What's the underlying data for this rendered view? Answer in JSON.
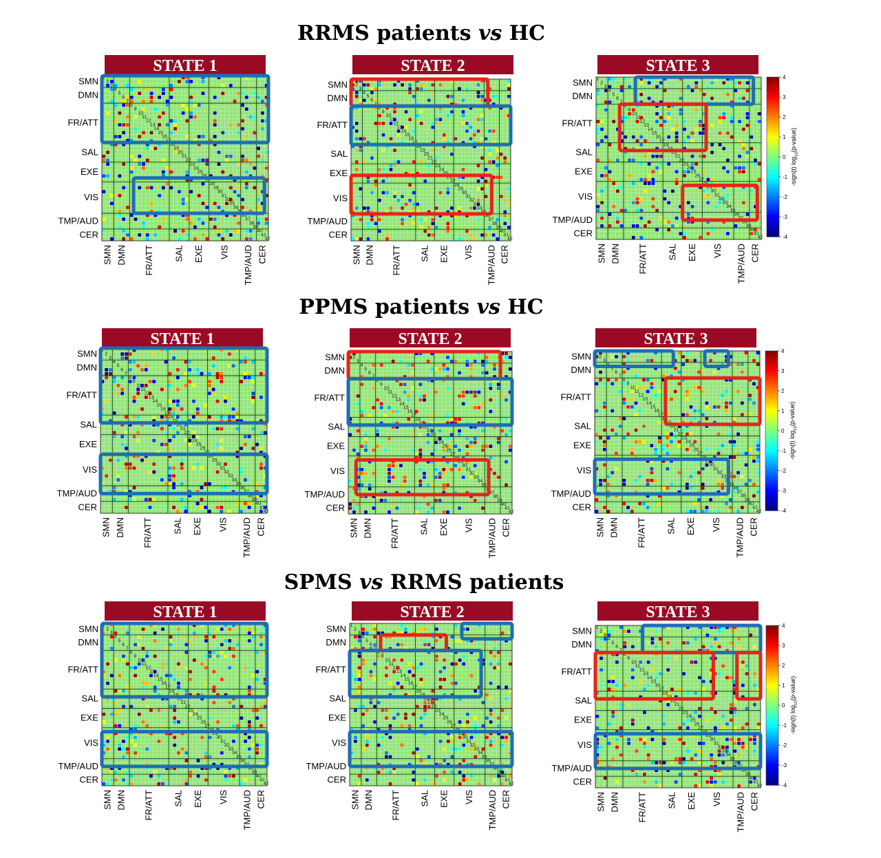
{
  "rows": [
    {
      "title_parts": [
        "RRMS patients ",
        "vs",
        " HC"
      ],
      "panels": [
        {
          "label": "STATE 1",
          "boxes": [
            {
              "color": "blue",
              "r0": 0,
              "r1": 17,
              "c0": 0,
              "c1": 42
            },
            {
              "color": "blue",
              "r0": 26,
              "r1": 35,
              "c0": 8,
              "c1": 41
            }
          ]
        },
        {
          "label": "STATE 2",
          "boxes": [
            {
              "color": "red",
              "r0": 0,
              "r1": 7,
              "c0": 0,
              "c1": 36
            },
            {
              "color": "blue",
              "r0": 7,
              "r1": 17,
              "c0": 0,
              "c1": 42
            },
            {
              "color": "red",
              "r0": 25,
              "r1": 35,
              "c0": 0,
              "c1": 37
            }
          ]
        },
        {
          "label": "STATE 3",
          "boxes": [
            {
              "color": "blue",
              "r0": 0,
              "r1": 7,
              "c0": 10,
              "c1": 40
            },
            {
              "color": "red",
              "r0": 7,
              "r1": 19,
              "c0": 6,
              "c1": 28
            },
            {
              "color": "red",
              "r0": 28,
              "r1": 37,
              "c0": 22,
              "c1": 41
            }
          ]
        }
      ]
    },
    {
      "title_parts": [
        "PPMS patients ",
        "vs",
        " HC"
      ],
      "panels": [
        {
          "label": "STATE 1",
          "boxes": [
            {
              "color": "blue",
              "r0": 0,
              "r1": 19,
              "c0": 0,
              "c1": 42
            },
            {
              "color": "blue",
              "r0": 27,
              "r1": 37,
              "c0": 0,
              "c1": 42
            }
          ]
        },
        {
          "label": "STATE 2",
          "boxes": [
            {
              "color": "red",
              "r0": 0,
              "r1": 7,
              "c0": 0,
              "c1": 39
            },
            {
              "color": "blue",
              "r0": 7,
              "r1": 19,
              "c0": 0,
              "c1": 42
            },
            {
              "color": "red",
              "r0": 28,
              "r1": 37,
              "c0": 2,
              "c1": 36
            }
          ]
        },
        {
          "label": "STATE 3",
          "boxes": [
            {
              "color": "blue",
              "r0": 0,
              "r1": 4,
              "c0": 0,
              "c1": 20
            },
            {
              "color": "blue",
              "r0": 0,
              "r1": 4,
              "c0": 28,
              "c1": 34
            },
            {
              "color": "red",
              "r0": 7,
              "r1": 19,
              "c0": 18,
              "c1": 42
            },
            {
              "color": "blue",
              "r0": 28,
              "r1": 37,
              "c0": 0,
              "c1": 34
            }
          ]
        }
      ]
    },
    {
      "title_parts": [
        "SPMS ",
        "vs",
        " RRMS patients"
      ],
      "panels": [
        {
          "label": "STATE 1",
          "boxes": [
            {
              "color": "blue",
              "r0": 0,
              "r1": 19,
              "c0": 0,
              "c1": 42
            },
            {
              "color": "blue",
              "r0": 28,
              "r1": 37,
              "c0": 0,
              "c1": 42
            }
          ]
        },
        {
          "label": "STATE 2",
          "boxes": [
            {
              "color": "red",
              "r0": 3,
              "r1": 7,
              "c0": 8,
              "c1": 25
            },
            {
              "color": "blue",
              "r0": 0,
              "r1": 4,
              "c0": 29,
              "c1": 44
            },
            {
              "color": "blue",
              "r0": 7,
              "r1": 19,
              "c0": 0,
              "c1": 34
            },
            {
              "color": "blue",
              "r0": 28,
              "r1": 37,
              "c0": 0,
              "c1": 43
            }
          ]
        },
        {
          "label": "STATE 3",
          "boxes": [
            {
              "color": "blue",
              "r0": 0,
              "r1": 7,
              "c0": 12,
              "c1": 44
            },
            {
              "color": "red",
              "r0": 7,
              "r1": 19,
              "c0": 0,
              "c1": 30
            },
            {
              "color": "red",
              "r0": 7,
              "r1": 19,
              "c0": 36,
              "c1": 44
            },
            {
              "color": "blue",
              "r0": 28,
              "r1": 37,
              "c0": 0,
              "c1": 44
            }
          ]
        }
      ]
    }
  ],
  "networks": [
    {
      "name": "SMN",
      "start": 0,
      "end": 3
    },
    {
      "name": "DMN",
      "start": 3,
      "end": 7
    },
    {
      "name": "FR/ATT",
      "start": 7,
      "end": 17
    },
    {
      "name": "SAL",
      "start": 17,
      "end": 22
    },
    {
      "name": "EXE",
      "start": 22,
      "end": 27
    },
    {
      "name": "VIS",
      "start": 27,
      "end": 35
    },
    {
      "name": "TMP/AUD",
      "start": 35,
      "end": 39
    },
    {
      "name": "CER",
      "start": 39,
      "end": 42
    }
  ],
  "node_count": 42,
  "colorbar": {
    "label": "-sign(t) log",
    "label_sub": "10",
    "label_tail": "(p-value)",
    "ticks": [
      4,
      3,
      2,
      1,
      0,
      -1,
      -2,
      -3,
      -4
    ]
  },
  "colors": {
    "background_cell": "#94e57a",
    "blue_box": "#1f6db4",
    "red_box": "#e8231b",
    "header": "#9b0a24"
  }
}
